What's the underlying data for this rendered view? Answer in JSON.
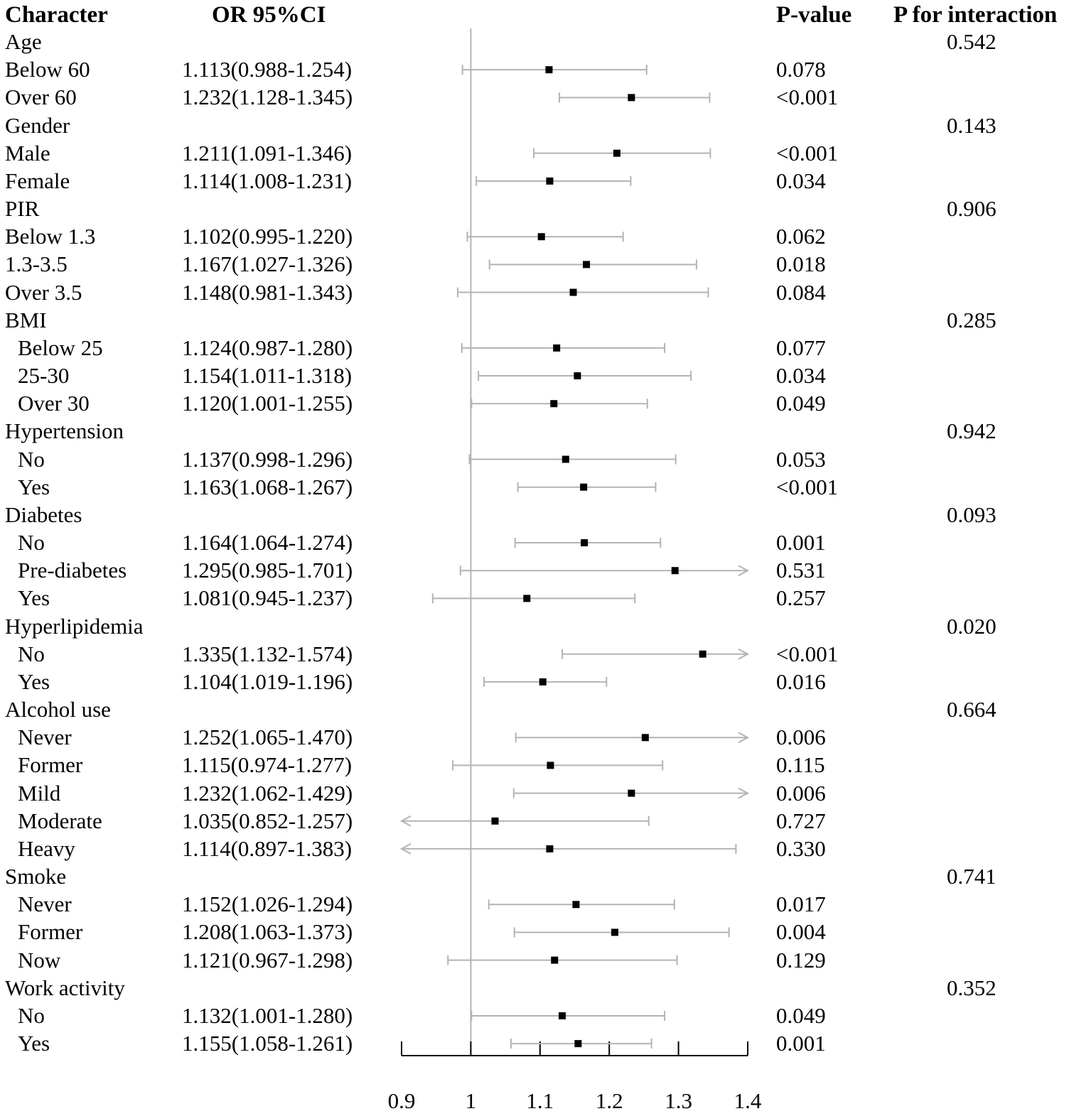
{
  "headers": {
    "character": "Character",
    "or_ci": "OR 95%CI",
    "p_value": "P-value",
    "p_interaction": "P for interaction"
  },
  "rows": [
    {
      "label": "Age",
      "group": true,
      "p_interaction": "0.542"
    },
    {
      "label": "Below 60",
      "indent": false,
      "or_text": "1.113(0.988-1.254)",
      "p_value": "0.078"
    },
    {
      "label": "Over 60",
      "indent": false,
      "or_text": "1.232(1.128-1.345)",
      "p_value": "<0.001"
    },
    {
      "label": "Gender",
      "group": true,
      "p_interaction": "0.143"
    },
    {
      "label": "Male",
      "indent": false,
      "or_text": "1.211(1.091-1.346)",
      "p_value": "<0.001"
    },
    {
      "label": "Female",
      "indent": false,
      "or_text": "1.114(1.008-1.231)",
      "p_value": "0.034"
    },
    {
      "label": "PIR",
      "group": true,
      "p_interaction": "0.906"
    },
    {
      "label": "Below 1.3",
      "indent": false,
      "or_text": "1.102(0.995-1.220)",
      "p_value": "0.062"
    },
    {
      "label": "1.3-3.5",
      "indent": false,
      "or_text": "1.167(1.027-1.326)",
      "p_value": "0.018"
    },
    {
      "label": "Over 3.5",
      "indent": false,
      "or_text": "1.148(0.981-1.343)",
      "p_value": "0.084"
    },
    {
      "label": "BMI",
      "group": true,
      "p_interaction": "0.285"
    },
    {
      "label": "Below 25",
      "indent": true,
      "or_text": "1.124(0.987-1.280)",
      "p_value": "0.077"
    },
    {
      "label": "25-30",
      "indent": true,
      "or_text": "1.154(1.011-1.318)",
      "p_value": "0.034"
    },
    {
      "label": "Over 30",
      "indent": true,
      "or_text": "1.120(1.001-1.255)",
      "p_value": "0.049"
    },
    {
      "label": "Hypertension",
      "group": true,
      "p_interaction": "0.942"
    },
    {
      "label": "No",
      "indent": true,
      "or_text": "1.137(0.998-1.296)",
      "p_value": "0.053"
    },
    {
      "label": "Yes",
      "indent": true,
      "or_text": "1.163(1.068-1.267)",
      "p_value": "<0.001"
    },
    {
      "label": "Diabetes",
      "group": true,
      "p_interaction": "0.093"
    },
    {
      "label": "No",
      "indent": true,
      "or_text": "1.164(1.064-1.274)",
      "p_value": "0.001"
    },
    {
      "label": "Pre-diabetes",
      "indent": true,
      "or_text": "1.295(0.985-1.701)",
      "p_value": "0.531"
    },
    {
      "label": "Yes",
      "indent": true,
      "or_text": "1.081(0.945-1.237)",
      "p_value": "0.257"
    },
    {
      "label": "Hyperlipidemia",
      "group": true,
      "p_interaction": "0.020"
    },
    {
      "label": "No",
      "indent": true,
      "or_text": "1.335(1.132-1.574)",
      "p_value": "<0.001"
    },
    {
      "label": "Yes",
      "indent": true,
      "or_text": "1.104(1.019-1.196)",
      "p_value": "0.016"
    },
    {
      "label": "Alcohol use",
      "group": true,
      "p_interaction": "0.664"
    },
    {
      "label": "Never",
      "indent": true,
      "or_text": "1.252(1.065-1.470)",
      "p_value": "0.006"
    },
    {
      "label": "Former",
      "indent": true,
      "or_text": "1.115(0.974-1.277)",
      "p_value": "0.115"
    },
    {
      "label": "Mild",
      "indent": true,
      "or_text": "1.232(1.062-1.429)",
      "p_value": "0.006"
    },
    {
      "label": "Moderate",
      "indent": true,
      "or_text": "1.035(0.852-1.257)",
      "p_value": "0.727"
    },
    {
      "label": "Heavy",
      "indent": true,
      "or_text": "1.114(0.897-1.383)",
      "p_value": "0.330"
    },
    {
      "label": "Smoke",
      "group": true,
      "p_interaction": "0.741"
    },
    {
      "label": "Never",
      "indent": true,
      "or_text": "1.152(1.026-1.294)",
      "p_value": "0.017"
    },
    {
      "label": "Former",
      "indent": true,
      "or_text": "1.208(1.063-1.373)",
      "p_value": "0.004"
    },
    {
      "label": "Now",
      "indent": true,
      "or_text": "1.121(0.967-1.298)",
      "p_value": "0.129"
    },
    {
      "label": "Work activity",
      "group": true,
      "p_interaction": "0.352"
    },
    {
      "label": "No",
      "indent": true,
      "or_text": "1.132(1.001-1.280)",
      "p_value": "0.049"
    },
    {
      "label": "Yes",
      "indent": true,
      "or_text": "1.155(1.058-1.261)",
      "p_value": "0.001"
    }
  ],
  "chart_data": {
    "type": "forest",
    "xlim": [
      0.9,
      1.4
    ],
    "reference_line": 1,
    "x_ticks": [
      "0.9",
      "1",
      "1.1",
      "1.2",
      "1.3",
      "1.4"
    ],
    "x_tick_values": [
      0.9,
      1.0,
      1.1,
      1.2,
      1.3,
      1.4
    ],
    "line_color": "#b3b3b3",
    "point_color": "#000000",
    "series": [
      {
        "name": "Below 60",
        "or": 1.113,
        "lower": 0.988,
        "upper": 1.254
      },
      {
        "name": "Over 60",
        "or": 1.232,
        "lower": 1.128,
        "upper": 1.345
      },
      {
        "name": "Male",
        "or": 1.211,
        "lower": 1.091,
        "upper": 1.346
      },
      {
        "name": "Female",
        "or": 1.114,
        "lower": 1.008,
        "upper": 1.231
      },
      {
        "name": "Below 1.3",
        "or": 1.102,
        "lower": 0.995,
        "upper": 1.22
      },
      {
        "name": "1.3-3.5",
        "or": 1.167,
        "lower": 1.027,
        "upper": 1.326
      },
      {
        "name": "Over 3.5",
        "or": 1.148,
        "lower": 0.981,
        "upper": 1.343
      },
      {
        "name": "Below 25",
        "or": 1.124,
        "lower": 0.987,
        "upper": 1.28
      },
      {
        "name": "25-30",
        "or": 1.154,
        "lower": 1.011,
        "upper": 1.318
      },
      {
        "name": "Over 30",
        "or": 1.12,
        "lower": 1.001,
        "upper": 1.255
      },
      {
        "name": "Hypertension No",
        "or": 1.137,
        "lower": 0.998,
        "upper": 1.296
      },
      {
        "name": "Hypertension Yes",
        "or": 1.163,
        "lower": 1.068,
        "upper": 1.267
      },
      {
        "name": "Diabetes No",
        "or": 1.164,
        "lower": 1.064,
        "upper": 1.274
      },
      {
        "name": "Pre-diabetes",
        "or": 1.295,
        "lower": 0.985,
        "upper": 1.701
      },
      {
        "name": "Diabetes Yes",
        "or": 1.081,
        "lower": 0.945,
        "upper": 1.237
      },
      {
        "name": "Hyperlipidemia No",
        "or": 1.335,
        "lower": 1.132,
        "upper": 1.574
      },
      {
        "name": "Hyperlipidemia Yes",
        "or": 1.104,
        "lower": 1.019,
        "upper": 1.196
      },
      {
        "name": "Alcohol Never",
        "or": 1.252,
        "lower": 1.065,
        "upper": 1.47
      },
      {
        "name": "Alcohol Former",
        "or": 1.115,
        "lower": 0.974,
        "upper": 1.277
      },
      {
        "name": "Alcohol Mild",
        "or": 1.232,
        "lower": 1.062,
        "upper": 1.429
      },
      {
        "name": "Alcohol Moderate",
        "or": 1.035,
        "lower": 0.852,
        "upper": 1.257
      },
      {
        "name": "Alcohol Heavy",
        "or": 1.114,
        "lower": 0.897,
        "upper": 1.383
      },
      {
        "name": "Smoke Never",
        "or": 1.152,
        "lower": 1.026,
        "upper": 1.294
      },
      {
        "name": "Smoke Former",
        "or": 1.208,
        "lower": 1.063,
        "upper": 1.373
      },
      {
        "name": "Smoke Now",
        "or": 1.121,
        "lower": 0.967,
        "upper": 1.298
      },
      {
        "name": "Work activity No",
        "or": 1.132,
        "lower": 1.001,
        "upper": 1.28
      },
      {
        "name": "Work activity Yes",
        "or": 1.155,
        "lower": 1.058,
        "upper": 1.261
      }
    ]
  }
}
